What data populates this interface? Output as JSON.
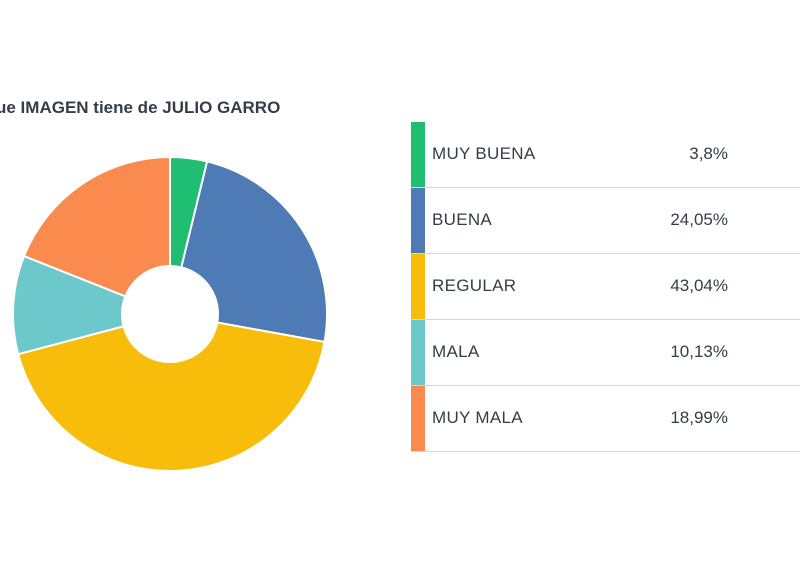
{
  "chart_data": {
    "type": "pie",
    "title": "ue IMAGEN tiene de JULIO GARRO",
    "categories": [
      "MUY BUENA",
      "BUENA",
      "REGULAR",
      "MALA",
      "MUY MALA"
    ],
    "values": [
      3.8,
      24.05,
      43.04,
      10.13,
      18.99
    ],
    "value_labels": [
      "3,8%",
      "24,05%",
      "43,04%",
      "10,13%",
      "18,99%"
    ],
    "colors": [
      "#1fbe73",
      "#4e7ab5",
      "#f7bd0a",
      "#6dc8cc",
      "#fb8a4f"
    ],
    "donut": true,
    "legend": "right"
  }
}
